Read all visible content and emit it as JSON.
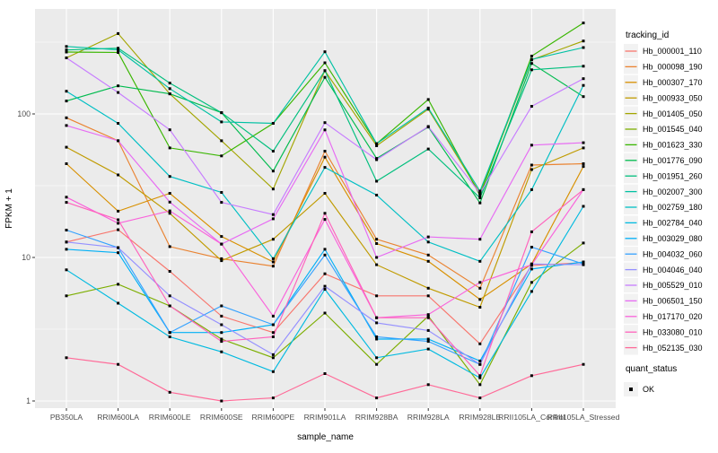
{
  "chart_data": {
    "type": "line",
    "title": "",
    "xlabel": "sample_name",
    "ylabel": "FPKM + 1",
    "y_scale": "log10",
    "y_ticks": [
      1,
      10,
      100
    ],
    "y_tick_labels": [
      "1",
      "10",
      "100"
    ],
    "y_minor_ticks": [
      3.162,
      31.62,
      316.2
    ],
    "ylim": [
      0.93,
      560
    ],
    "grid": "on",
    "panel_bg": "#EBEBEB",
    "grid_color": "#FFFFFF",
    "tick_label_color": "#4D4D4D",
    "axis_title_color": "#000000",
    "point_color": "#000000",
    "legend_key_bg": "#F2F2F2",
    "legend_title": "tracking_id",
    "point_legend": {
      "title": "quant_status",
      "items": [
        "OK"
      ]
    },
    "x_categories": [
      "PB350LA",
      "RRIM600LA",
      "RRIM600LE",
      "RRIM600SE",
      "RRIM600PE",
      "RRIM901LA",
      "RRIM928BA",
      "RRIM928LA",
      "RRIM928LE",
      "RRII105LA_Control",
      "RRII105LA_Stressed"
    ],
    "series": [
      {
        "name": "Hb_000001_110",
        "color": "#F8766D",
        "values": [
          12.8,
          15.6,
          8.0,
          3.9,
          3.0,
          7.7,
          5.4,
          5.4,
          2.5,
          8.8,
          9.2
        ]
      },
      {
        "name": "Hb_000098_190",
        "color": "#EA8331",
        "values": [
          94,
          65,
          11.9,
          9.8,
          8.7,
          55,
          13.4,
          10.4,
          6.1,
          44,
          45
        ]
      },
      {
        "name": "Hb_000307_170",
        "color": "#D89000",
        "values": [
          45,
          21,
          28,
          14,
          9.3,
          50,
          12.5,
          9.4,
          5.1,
          9.0,
          43
        ]
      },
      {
        "name": "Hb_000933_050",
        "color": "#C09B00",
        "values": [
          58.6,
          37.6,
          20.3,
          9.5,
          13.4,
          28,
          8.9,
          6.1,
          4.5,
          41,
          58
        ]
      },
      {
        "name": "Hb_001405_050",
        "color": "#A3A500",
        "values": [
          246,
          363,
          138,
          65,
          30,
          200,
          60,
          108,
          28,
          238,
          322
        ]
      },
      {
        "name": "Hb_001545_040",
        "color": "#7CAE00",
        "values": [
          5.4,
          6.5,
          4.6,
          2.7,
          2.0,
          4.1,
          1.8,
          3.9,
          1.3,
          6.7,
          12.6
        ]
      },
      {
        "name": "Hb_001623_330",
        "color": "#39B600",
        "values": [
          270,
          268,
          58,
          51,
          86,
          227,
          62,
          126,
          27,
          253,
          430
        ]
      },
      {
        "name": "Hb_001776_090",
        "color": "#00BB4E",
        "values": [
          123,
          157,
          138,
          102,
          40,
          180,
          49,
          81,
          24,
          225,
          132
        ]
      },
      {
        "name": "Hb_001951_260",
        "color": "#00BF7D",
        "values": [
          279,
          287,
          164,
          102,
          55,
          200,
          34,
          57,
          26,
          203,
          215
        ]
      },
      {
        "name": "Hb_002007_300",
        "color": "#00C1A3",
        "values": [
          295,
          280,
          150,
          88,
          86,
          271,
          62,
          110,
          29,
          240,
          290
        ]
      },
      {
        "name": "Hb_002759_180",
        "color": "#00BFC4",
        "values": [
          144,
          86,
          36.7,
          28.4,
          9.8,
          42.4,
          27.2,
          12.8,
          9.4,
          29.7,
          158
        ]
      },
      {
        "name": "Hb_002784_040",
        "color": "#00BAE0",
        "values": [
          8.2,
          4.8,
          2.8,
          2.2,
          1.6,
          6.0,
          2.0,
          2.3,
          1.45,
          5.8,
          22.7
        ]
      },
      {
        "name": "Hb_003029_080",
        "color": "#00B0F6",
        "values": [
          11.4,
          10.8,
          3.0,
          3.0,
          3.4,
          11.4,
          2.7,
          2.7,
          1.9,
          8.3,
          9.3
        ]
      },
      {
        "name": "Hb_004032_060",
        "color": "#35A2FF",
        "values": [
          15.5,
          11.7,
          3.0,
          4.6,
          3.4,
          10.4,
          2.8,
          2.6,
          1.8,
          11.8,
          9.0
        ]
      },
      {
        "name": "Hb_004046_040",
        "color": "#9590FF",
        "values": [
          12.8,
          11.7,
          5.4,
          3.4,
          2.1,
          6.3,
          3.5,
          3.1,
          1.8,
          9.0,
          8.9
        ]
      },
      {
        "name": "Hb_005529_010",
        "color": "#C77CFF",
        "values": [
          246,
          141,
          77.5,
          24.2,
          19.9,
          87,
          48,
          81.7,
          28,
          113,
          176
        ]
      },
      {
        "name": "Hb_006501_150",
        "color": "#E76BF3",
        "values": [
          83,
          65,
          24.3,
          12.4,
          18.6,
          77.4,
          10.0,
          13.9,
          13.4,
          60.6,
          63
        ]
      },
      {
        "name": "Hb_017170_020",
        "color": "#FA62DB",
        "values": [
          26.3,
          17.3,
          21.1,
          12.4,
          3.9,
          18.4,
          3.8,
          4.0,
          6.7,
          8.9,
          29.7
        ]
      },
      {
        "name": "Hb_033080_010",
        "color": "#FF62BC",
        "values": [
          24.2,
          18.3,
          4.6,
          2.6,
          2.8,
          20.3,
          3.8,
          3.8,
          1.5,
          15.1,
          29.7
        ]
      },
      {
        "name": "Hb_052135_030",
        "color": "#FF6A98",
        "values": [
          2.0,
          1.8,
          1.15,
          1.0,
          1.05,
          1.55,
          1.05,
          1.3,
          1.05,
          1.5,
          1.8
        ]
      }
    ]
  }
}
